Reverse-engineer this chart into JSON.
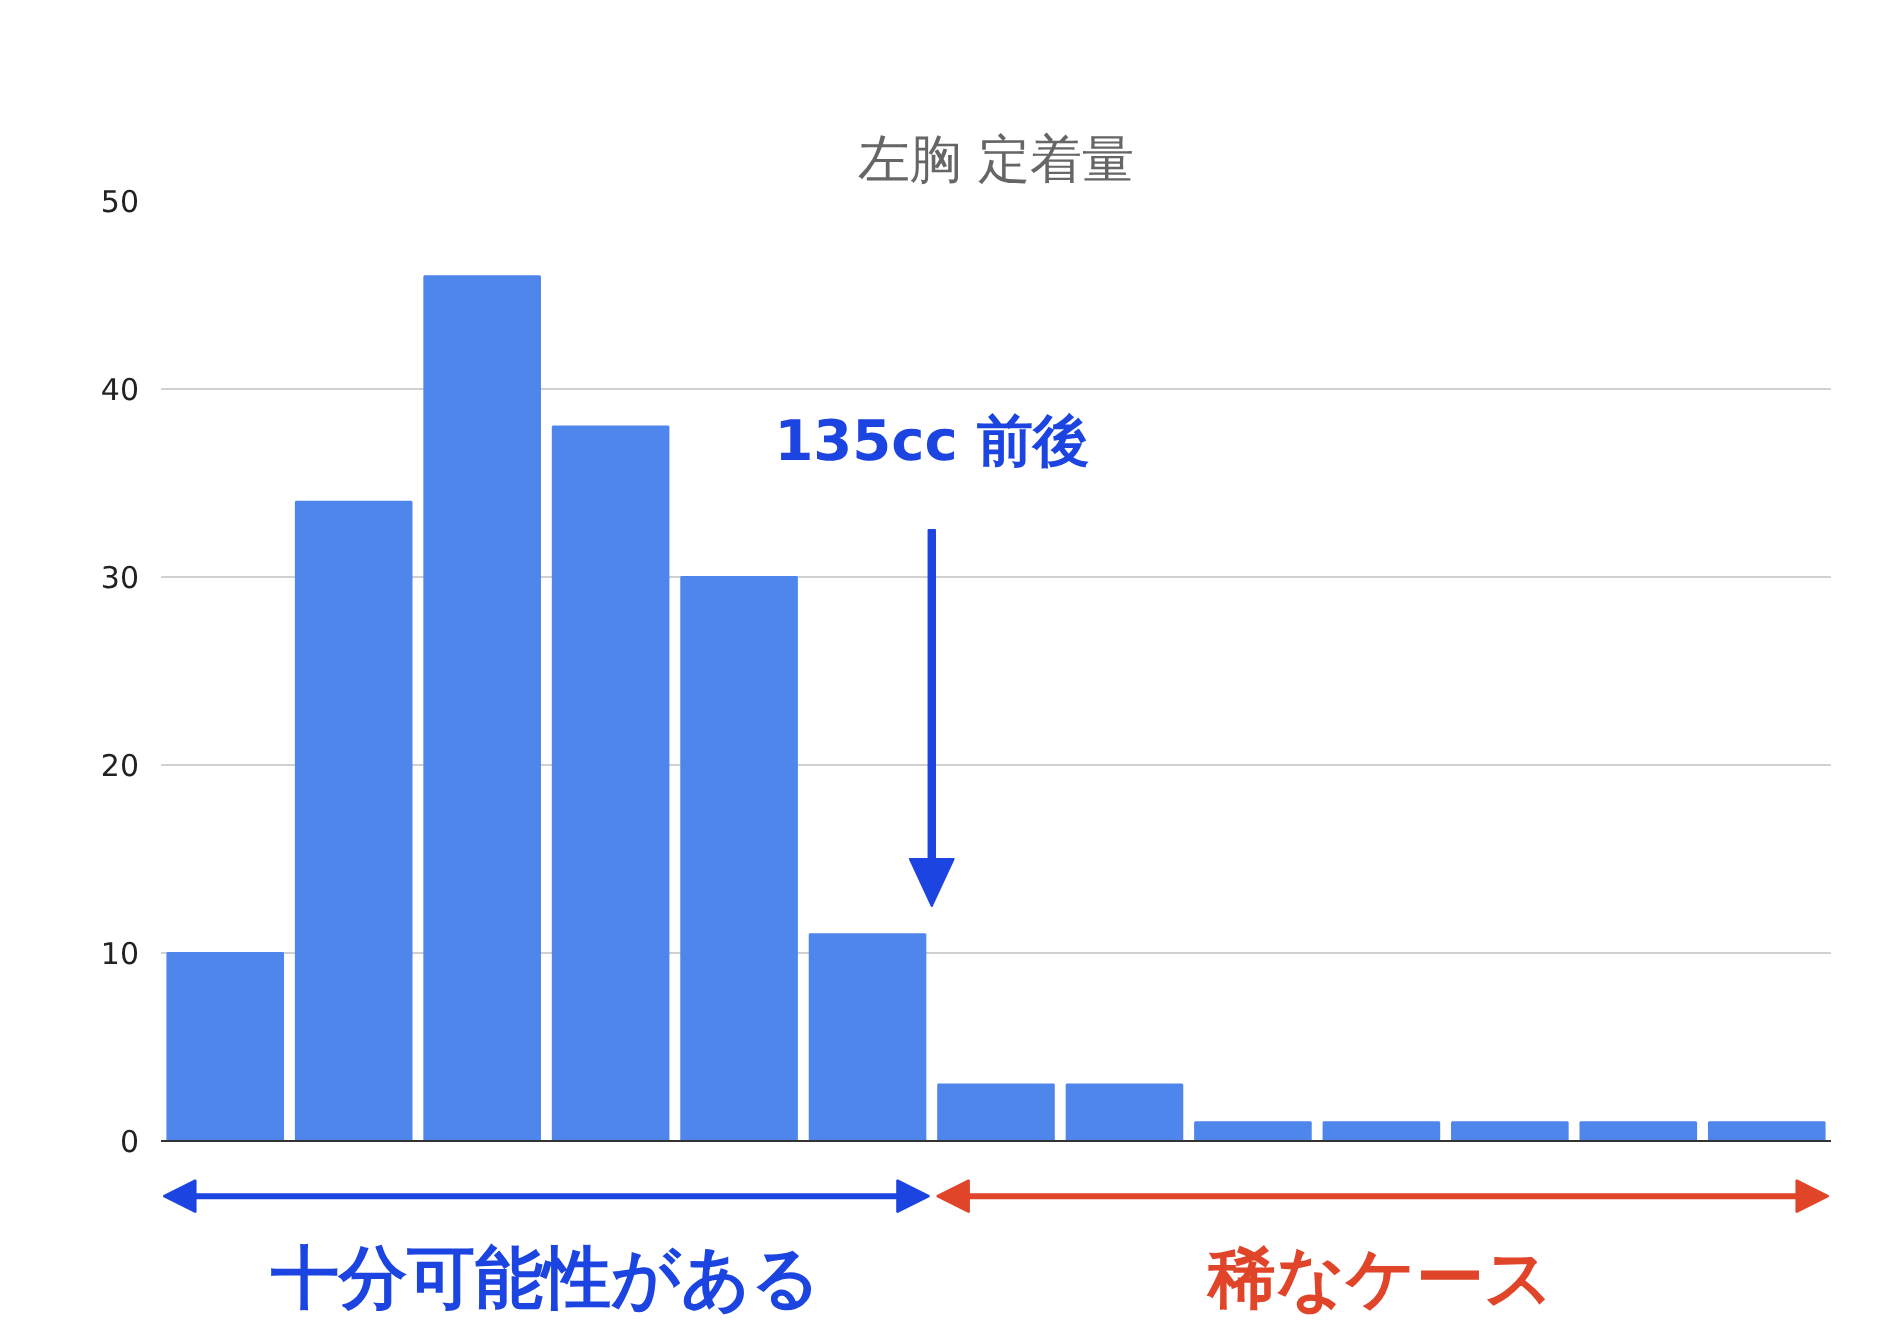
{
  "chart_data": {
    "type": "bar",
    "title": "左胸 定着量",
    "categories": [
      null,
      null,
      null,
      null,
      null,
      null,
      null,
      null,
      null,
      null,
      null,
      null,
      null
    ],
    "values": [
      10,
      34,
      46,
      38,
      30,
      11,
      3,
      3,
      1,
      1,
      1,
      1,
      1
    ],
    "color": "#4f86ec",
    "ylim": [
      0,
      50
    ],
    "yticks": [
      0,
      10,
      20,
      30,
      40,
      50
    ],
    "grid": "y",
    "annotations": [
      "135cc 前後",
      "十分可能性がある",
      "稀なケース"
    ]
  }
}
